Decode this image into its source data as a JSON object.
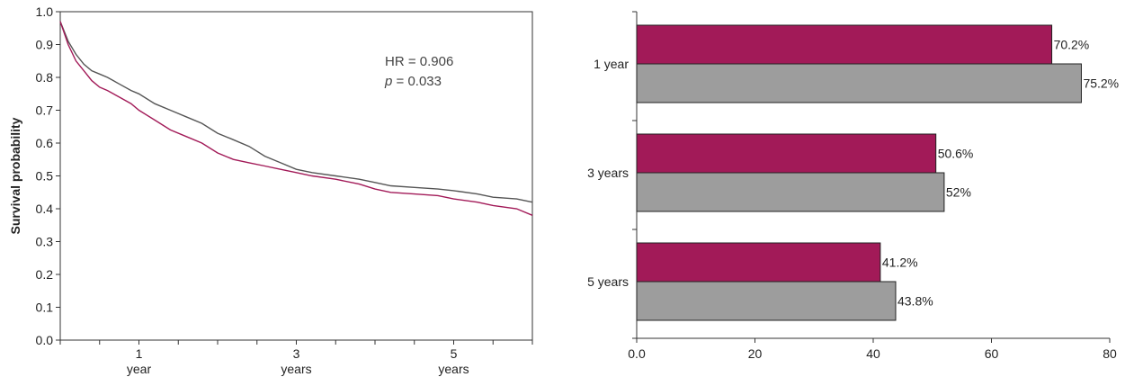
{
  "colors": {
    "series_primary": "#a21a58",
    "series_secondary": "#9d9d9d",
    "axis": "#333333"
  },
  "chart_data": [
    {
      "type": "line",
      "ylabel": "Survival probability",
      "ylim": [
        0,
        1
      ],
      "yticks": [
        "0.0",
        "0.1",
        "0.2",
        "0.3",
        "0.4",
        "0.5",
        "0.6",
        "0.7",
        "0.8",
        "0.9",
        "1.0"
      ],
      "xlim": [
        0,
        6
      ],
      "xticks": [
        {
          "x": 1,
          "line1": "1",
          "line2": "year"
        },
        {
          "x": 3,
          "line1": "3",
          "line2": "years"
        },
        {
          "x": 5,
          "line1": "5",
          "line2": "years"
        }
      ],
      "xminor": [
        0,
        0.5,
        1,
        1.5,
        2,
        2.5,
        3,
        3.5,
        4,
        4.5,
        5,
        5.5,
        6
      ],
      "annotation": {
        "hr": "HR = 0.906",
        "p_italic": "p",
        "p_rest": " = 0.033"
      },
      "series": [
        {
          "color": "#555555",
          "points": [
            [
              0,
              0.97
            ],
            [
              0.1,
              0.91
            ],
            [
              0.2,
              0.87
            ],
            [
              0.3,
              0.84
            ],
            [
              0.4,
              0.82
            ],
            [
              0.5,
              0.81
            ],
            [
              0.6,
              0.8
            ],
            [
              0.75,
              0.78
            ],
            [
              0.9,
              0.76
            ],
            [
              1.0,
              0.75
            ],
            [
              1.2,
              0.72
            ],
            [
              1.4,
              0.7
            ],
            [
              1.6,
              0.68
            ],
            [
              1.8,
              0.66
            ],
            [
              2.0,
              0.63
            ],
            [
              2.2,
              0.61
            ],
            [
              2.4,
              0.59
            ],
            [
              2.6,
              0.56
            ],
            [
              2.8,
              0.54
            ],
            [
              3.0,
              0.52
            ],
            [
              3.2,
              0.51
            ],
            [
              3.5,
              0.5
            ],
            [
              3.8,
              0.49
            ],
            [
              4.0,
              0.48
            ],
            [
              4.2,
              0.47
            ],
            [
              4.5,
              0.465
            ],
            [
              4.8,
              0.46
            ],
            [
              5.0,
              0.455
            ],
            [
              5.3,
              0.445
            ],
            [
              5.5,
              0.435
            ],
            [
              5.8,
              0.43
            ],
            [
              6.0,
              0.42
            ]
          ]
        },
        {
          "color": "#a21a58",
          "points": [
            [
              0,
              0.97
            ],
            [
              0.1,
              0.9
            ],
            [
              0.2,
              0.85
            ],
            [
              0.3,
              0.82
            ],
            [
              0.4,
              0.79
            ],
            [
              0.5,
              0.77
            ],
            [
              0.6,
              0.76
            ],
            [
              0.75,
              0.74
            ],
            [
              0.9,
              0.72
            ],
            [
              1.0,
              0.7
            ],
            [
              1.2,
              0.67
            ],
            [
              1.4,
              0.64
            ],
            [
              1.6,
              0.62
            ],
            [
              1.8,
              0.6
            ],
            [
              2.0,
              0.57
            ],
            [
              2.2,
              0.55
            ],
            [
              2.4,
              0.54
            ],
            [
              2.6,
              0.53
            ],
            [
              2.8,
              0.52
            ],
            [
              3.0,
              0.51
            ],
            [
              3.2,
              0.5
            ],
            [
              3.5,
              0.49
            ],
            [
              3.8,
              0.475
            ],
            [
              4.0,
              0.46
            ],
            [
              4.2,
              0.45
            ],
            [
              4.5,
              0.445
            ],
            [
              4.8,
              0.44
            ],
            [
              5.0,
              0.43
            ],
            [
              5.3,
              0.42
            ],
            [
              5.5,
              0.41
            ],
            [
              5.8,
              0.4
            ],
            [
              6.0,
              0.38
            ]
          ]
        }
      ]
    },
    {
      "type": "bar",
      "orientation": "horizontal",
      "xlim": [
        0,
        80
      ],
      "xticks": [
        "0.0",
        "20",
        "40",
        "60",
        "80"
      ],
      "xtick_values": [
        0,
        20,
        40,
        60,
        80
      ],
      "categories": [
        "1 year",
        "3 years",
        "5 years"
      ],
      "series": [
        {
          "color": "#a21a58",
          "values": [
            70.2,
            50.6,
            41.2
          ],
          "labels": [
            "70.2%",
            "50.6%",
            "41.2%"
          ]
        },
        {
          "color": "#9d9d9d",
          "values": [
            75.2,
            52,
            43.8
          ],
          "labels": [
            "75.2%",
            "52%",
            "43.8%"
          ]
        }
      ]
    }
  ]
}
